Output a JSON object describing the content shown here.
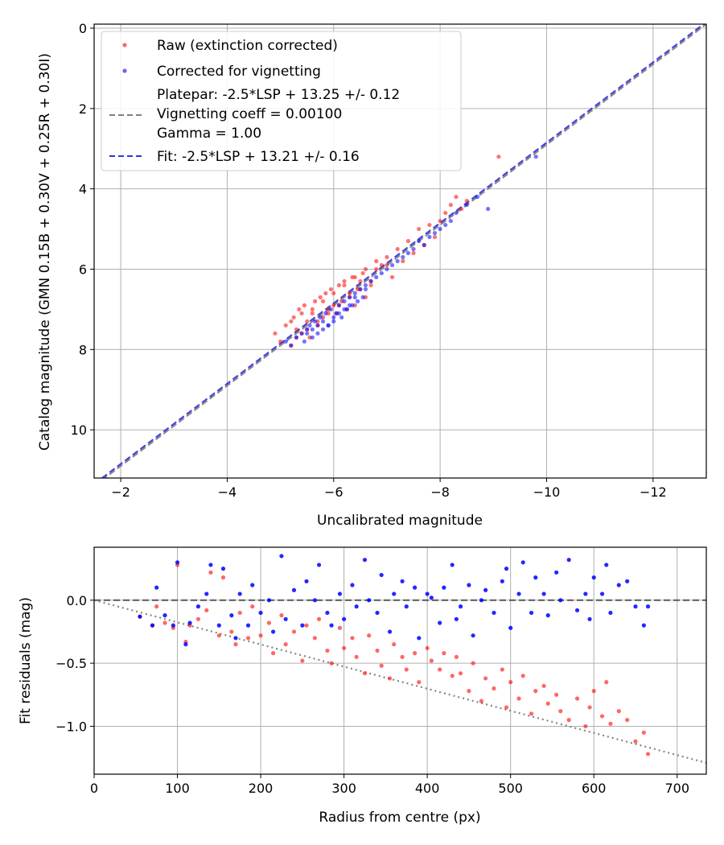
{
  "chart_data": [
    {
      "type": "scatter",
      "xlabel": "Uncalibrated magnitude",
      "ylabel": "Catalog magnitude (GMN 0.15B + 0.30V + 0.25R + 0.30I)",
      "xlim": [
        -1.5,
        -13.0
      ],
      "ylim": [
        11.2,
        -0.1
      ],
      "x_ticks": [
        "−2",
        "−4",
        "−6",
        "−8",
        "−10",
        "−12"
      ],
      "y_ticks": [
        "0",
        "2",
        "4",
        "6",
        "8",
        "10"
      ],
      "grid": true,
      "legend_position": "upper-left",
      "legend": [
        {
          "label": "Raw (extinction corrected)",
          "marker": "dot",
          "color": "#ff0000"
        },
        {
          "label": "Corrected for vignetting",
          "marker": "dot",
          "color": "#0000ff"
        },
        {
          "label_lines": [
            "Platepar: -2.5*LSP + 13.25 +/- 0.12",
            "Vignetting coeff = 0.00100",
            "Gamma = 1.00"
          ],
          "marker": "dashed-line",
          "color": "#808080"
        },
        {
          "label": "Fit: -2.5*LSP + 13.21 +/- 0.16",
          "marker": "dashed-line",
          "color": "#3333dd"
        }
      ],
      "lines": [
        {
          "name": "Platepar",
          "x": [
            -1.5,
            -13.0
          ],
          "y": [
            11.4,
            -0.1
          ],
          "color": "#808080",
          "style": "dashed"
        },
        {
          "name": "Fit",
          "x": [
            -1.5,
            -13.0
          ],
          "y": [
            11.35,
            -0.15
          ],
          "color": "#3333dd",
          "style": "dashed"
        }
      ],
      "series": [
        {
          "name": "Raw (extinction corrected)",
          "color": "#ff0000",
          "x": [
            -4.9,
            -5.0,
            -5.1,
            -5.2,
            -5.25,
            -5.3,
            -5.35,
            -5.4,
            -5.45,
            -5.5,
            -5.55,
            -5.6,
            -5.65,
            -5.7,
            -5.75,
            -5.8,
            -5.85,
            -5.9,
            -5.95,
            -6.0,
            -6.05,
            -6.1,
            -6.15,
            -6.2,
            -6.25,
            -6.3,
            -6.35,
            -6.4,
            -6.45,
            -6.5,
            -6.55,
            -6.6,
            -6.7,
            -6.8,
            -6.9,
            -7.0,
            -7.1,
            -7.2,
            -7.3,
            -7.4,
            -7.5,
            -7.6,
            -7.7,
            -7.8,
            -7.9,
            -8.0,
            -8.1,
            -8.2,
            -8.3,
            -8.4,
            -8.5,
            -9.1,
            -5.3,
            -5.5,
            -5.7,
            -5.9,
            -6.1,
            -6.3,
            -6.5,
            -5.6,
            -5.8,
            -6.0,
            -6.2,
            -6.4,
            -6.6,
            -6.8,
            -5.2,
            -5.4,
            -6.7,
            -7.0
          ],
          "y": [
            7.6,
            7.8,
            7.4,
            7.9,
            7.2,
            7.5,
            7.0,
            7.6,
            6.9,
            7.3,
            7.7,
            7.1,
            6.8,
            7.4,
            6.7,
            7.2,
            6.6,
            7.0,
            6.5,
            6.9,
            7.1,
            6.4,
            6.8,
            6.3,
            7.0,
            6.6,
            6.2,
            6.9,
            6.5,
            6.3,
            6.1,
            6.7,
            6.4,
            6.0,
            5.9,
            5.7,
            6.2,
            5.5,
            5.8,
            5.3,
            5.6,
            5.0,
            5.4,
            4.9,
            5.2,
            4.8,
            4.6,
            4.4,
            4.2,
            4.5,
            4.3,
            3.2,
            7.7,
            7.5,
            7.3,
            7.1,
            6.9,
            6.7,
            6.5,
            7.0,
            6.8,
            6.6,
            6.4,
            6.2,
            6.0,
            5.8,
            7.3,
            7.1,
            6.3,
            5.9
          ]
        },
        {
          "name": "Corrected for vignetting",
          "color": "#0000ff",
          "x": [
            -5.1,
            -5.2,
            -5.3,
            -5.4,
            -5.45,
            -5.5,
            -5.55,
            -5.6,
            -5.65,
            -5.7,
            -5.75,
            -5.8,
            -5.85,
            -5.9,
            -5.95,
            -6.0,
            -6.05,
            -6.1,
            -6.15,
            -6.2,
            -6.25,
            -6.3,
            -6.35,
            -6.4,
            -6.45,
            -6.5,
            -6.55,
            -6.6,
            -6.7,
            -6.8,
            -6.9,
            -7.0,
            -7.1,
            -7.2,
            -7.3,
            -7.4,
            -7.5,
            -7.6,
            -7.7,
            -7.8,
            -7.9,
            -8.0,
            -8.1,
            -8.2,
            -8.3,
            -8.5,
            -8.7,
            -8.9,
            -9.8,
            -5.6,
            -5.8,
            -6.0,
            -6.2,
            -6.4,
            -6.6,
            -5.5,
            -5.9,
            -6.3,
            -6.1,
            -5.7
          ],
          "y": [
            7.8,
            7.9,
            7.7,
            7.6,
            7.8,
            7.5,
            7.4,
            7.7,
            7.3,
            7.6,
            7.2,
            7.5,
            7.1,
            7.4,
            7.0,
            7.3,
            7.1,
            6.9,
            7.2,
            6.8,
            7.0,
            6.7,
            6.9,
            6.6,
            6.8,
            6.5,
            6.7,
            6.4,
            6.3,
            6.2,
            6.1,
            6.0,
            5.9,
            5.8,
            5.7,
            5.6,
            5.5,
            5.3,
            5.4,
            5.2,
            5.1,
            5.0,
            4.9,
            4.8,
            4.6,
            4.4,
            4.2,
            4.5,
            3.2,
            7.5,
            7.3,
            7.2,
            7.0,
            6.7,
            6.5,
            7.6,
            7.4,
            6.9,
            7.1,
            7.4
          ]
        }
      ]
    },
    {
      "type": "scatter",
      "xlabel": "Radius from centre (px)",
      "ylabel": "Fit residuals (mag)",
      "xlim": [
        0,
        735
      ],
      "ylim": [
        -1.38,
        0.42
      ],
      "x_ticks": [
        "0",
        "100",
        "200",
        "300",
        "400",
        "500",
        "600",
        "700"
      ],
      "y_ticks": [
        "0.0",
        "−0.5",
        "−1.0"
      ],
      "grid": true,
      "lines": [
        {
          "name": "zero",
          "x": [
            0,
            735
          ],
          "y": [
            0,
            0
          ],
          "color": "#555555",
          "style": "dashed"
        },
        {
          "name": "vignetting model",
          "x": [
            0,
            735
          ],
          "y": [
            0,
            -1.29
          ],
          "color": "#777777",
          "style": "dotted"
        }
      ],
      "series": [
        {
          "name": "Raw (extinction corrected)",
          "color": "#ff0000",
          "x": [
            55,
            70,
            75,
            85,
            95,
            100,
            110,
            115,
            125,
            135,
            140,
            150,
            155,
            165,
            170,
            175,
            185,
            190,
            200,
            210,
            215,
            225,
            230,
            240,
            250,
            255,
            265,
            270,
            280,
            285,
            295,
            300,
            310,
            315,
            325,
            330,
            340,
            345,
            355,
            360,
            370,
            375,
            385,
            390,
            400,
            405,
            415,
            420,
            430,
            435,
            440,
            450,
            455,
            465,
            470,
            480,
            490,
            495,
            500,
            510,
            515,
            525,
            530,
            540,
            545,
            555,
            560,
            570,
            580,
            590,
            595,
            600,
            610,
            615,
            620,
            630,
            640,
            650,
            660,
            665
          ],
          "y": [
            -0.13,
            -0.2,
            -0.05,
            -0.18,
            -0.22,
            0.28,
            -0.33,
            -0.2,
            -0.15,
            -0.08,
            0.22,
            -0.28,
            0.18,
            -0.25,
            -0.35,
            -0.1,
            -0.3,
            -0.05,
            -0.28,
            -0.18,
            -0.42,
            -0.12,
            -0.35,
            -0.25,
            -0.48,
            -0.2,
            -0.3,
            -0.15,
            -0.4,
            -0.5,
            -0.22,
            -0.38,
            -0.3,
            -0.45,
            -0.58,
            -0.28,
            -0.4,
            -0.52,
            -0.62,
            -0.35,
            -0.45,
            -0.55,
            -0.42,
            -0.65,
            -0.38,
            -0.48,
            -0.55,
            -0.42,
            -0.6,
            -0.45,
            -0.58,
            -0.72,
            -0.5,
            -0.8,
            -0.62,
            -0.7,
            -0.55,
            -0.85,
            -0.65,
            -0.78,
            -0.6,
            -0.9,
            -0.72,
            -0.68,
            -0.82,
            -0.75,
            -0.88,
            -0.95,
            -0.78,
            -1.0,
            -0.85,
            -0.72,
            -0.92,
            -0.65,
            -0.98,
            -0.88,
            -0.95,
            -1.12,
            -1.05,
            -1.22
          ]
        },
        {
          "name": "Corrected for vignetting",
          "color": "#0000ff",
          "x": [
            55,
            70,
            75,
            85,
            95,
            100,
            110,
            115,
            125,
            135,
            140,
            150,
            155,
            165,
            170,
            175,
            185,
            190,
            200,
            210,
            215,
            225,
            230,
            240,
            250,
            255,
            265,
            270,
            280,
            285,
            295,
            300,
            310,
            315,
            325,
            330,
            340,
            345,
            355,
            360,
            370,
            375,
            385,
            390,
            400,
            405,
            415,
            420,
            430,
            435,
            440,
            450,
            455,
            465,
            470,
            480,
            490,
            495,
            500,
            510,
            515,
            525,
            530,
            540,
            545,
            555,
            560,
            570,
            580,
            590,
            595,
            600,
            610,
            615,
            620,
            630,
            640,
            650,
            660,
            665
          ],
          "y": [
            -0.13,
            -0.2,
            0.1,
            -0.12,
            -0.2,
            0.3,
            -0.35,
            -0.18,
            -0.05,
            0.05,
            0.28,
            -0.2,
            0.25,
            -0.12,
            -0.3,
            0.05,
            -0.2,
            0.12,
            -0.1,
            0.0,
            -0.25,
            0.35,
            -0.15,
            0.08,
            -0.2,
            0.15,
            0.0,
            0.28,
            -0.1,
            -0.2,
            0.05,
            -0.15,
            0.12,
            -0.05,
            0.32,
            0.0,
            -0.1,
            0.2,
            -0.25,
            0.05,
            0.15,
            -0.05,
            0.1,
            -0.3,
            0.05,
            0.02,
            -0.18,
            0.1,
            0.28,
            -0.15,
            -0.05,
            0.12,
            -0.28,
            0.0,
            0.08,
            -0.1,
            0.15,
            0.25,
            -0.22,
            0.05,
            0.3,
            -0.1,
            0.18,
            0.05,
            -0.12,
            0.22,
            0.0,
            0.32,
            -0.08,
            0.05,
            -0.15,
            0.18,
            0.05,
            0.28,
            -0.1,
            0.12,
            0.15,
            -0.05,
            -0.2,
            -0.05
          ]
        }
      ]
    }
  ]
}
